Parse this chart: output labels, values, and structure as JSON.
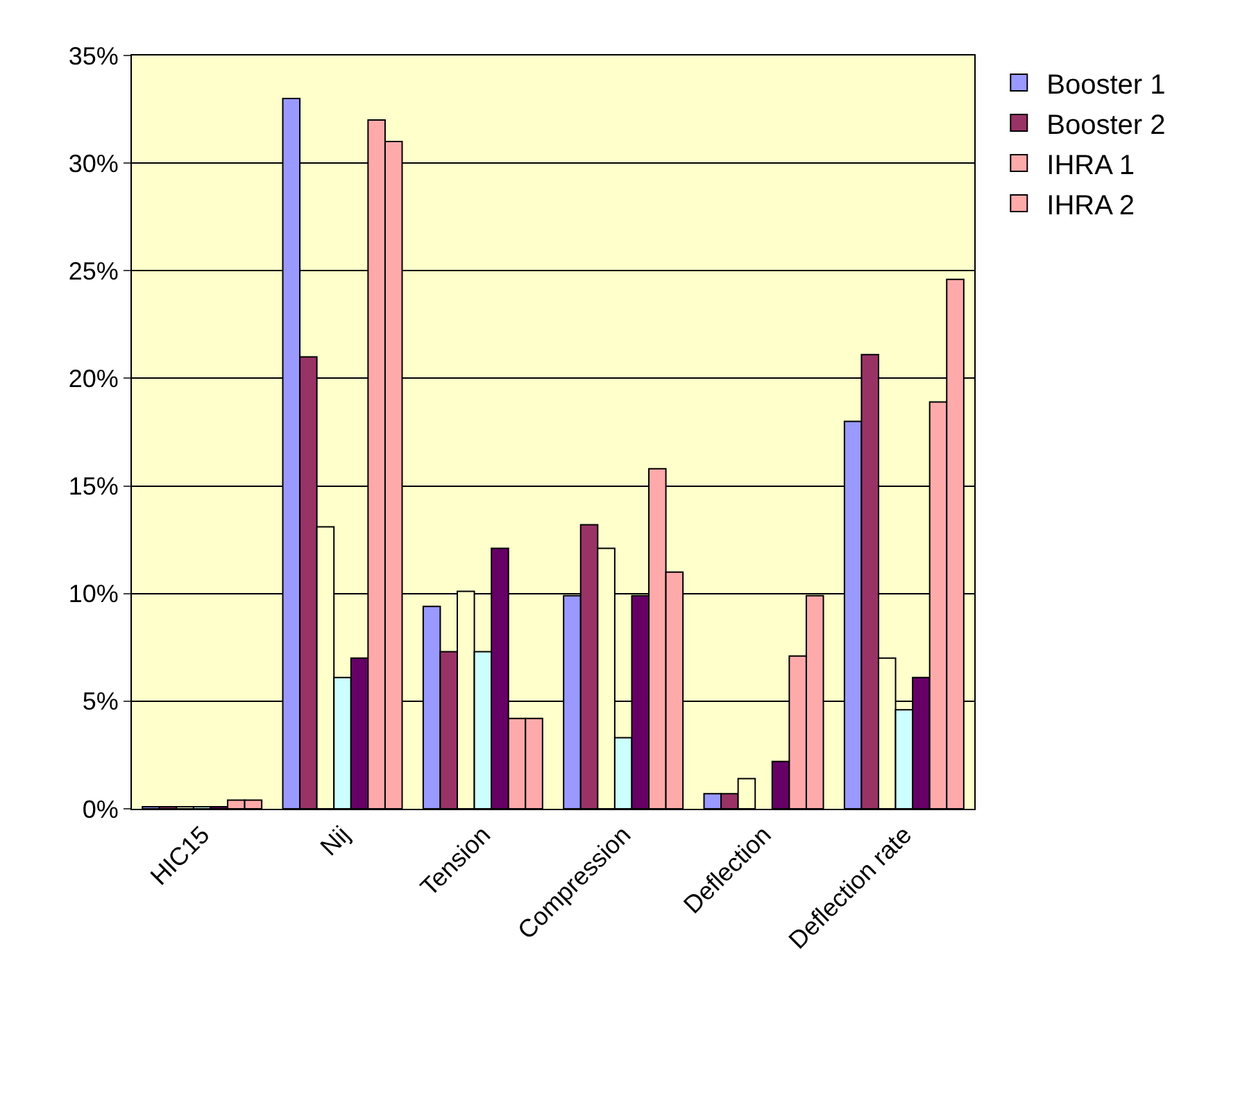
{
  "chart_data": {
    "type": "bar",
    "categories": [
      "HIC15",
      "Nij",
      "Tension",
      "Compression",
      "Deflection",
      "Deflection rate"
    ],
    "series": [
      {
        "name": "Booster 1",
        "color": "#9999ff",
        "values": [
          0.1,
          33,
          9.4,
          9.9,
          0.7,
          18
        ]
      },
      {
        "name": "Booster 2",
        "color": "#993366",
        "values": [
          0.1,
          21,
          7.3,
          13.2,
          0.7,
          21.1
        ]
      },
      {
        "color": "#ffffcc",
        "values": [
          0.1,
          13.1,
          10.1,
          12.1,
          1.4,
          7
        ]
      },
      {
        "color": "#ccffff",
        "values": [
          0.1,
          6.1,
          7.3,
          3.3,
          null,
          4.6
        ]
      },
      {
        "color": "#660066",
        "values": [
          0.1,
          7,
          12.1,
          9.9,
          2.2,
          6.1
        ]
      },
      {
        "name": "IHRA 1",
        "color": "#ffaaaa",
        "values": [
          0.4,
          32,
          4.2,
          15.8,
          7.1,
          18.9
        ]
      },
      {
        "name": "IHRA 2",
        "color": "#ffaaaa",
        "values": [
          0.4,
          31,
          4.2,
          11,
          9.9,
          24.6
        ]
      }
    ],
    "ylim": [
      0,
      35
    ],
    "yticks": [
      {
        "value": 0,
        "label": "0%"
      },
      {
        "value": 5,
        "label": "5%"
      },
      {
        "value": 10,
        "label": "10%"
      },
      {
        "value": 15,
        "label": "15%"
      },
      {
        "value": 20,
        "label": "20%"
      },
      {
        "value": 25,
        "label": "25%"
      },
      {
        "value": 30,
        "label": "30%"
      },
      {
        "value": 35,
        "label": "35%"
      }
    ],
    "grid": "y",
    "legend": "top right"
  }
}
